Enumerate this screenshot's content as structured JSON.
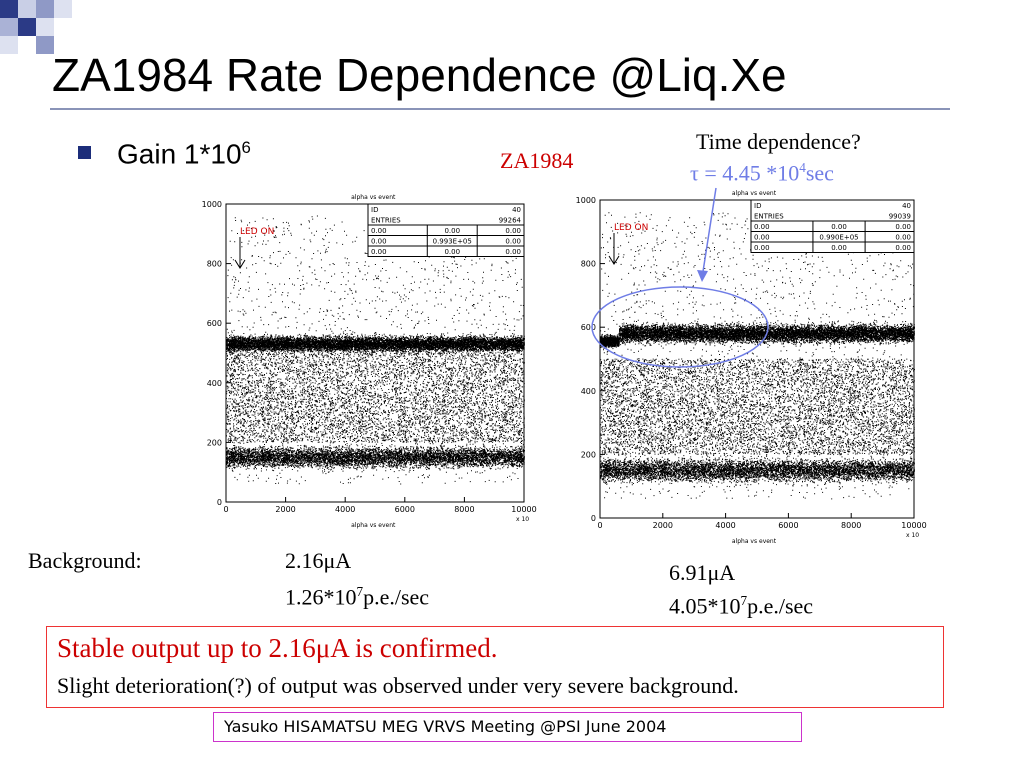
{
  "slide": {
    "title": "ZA1984 Rate Dependence @Liq.Xe",
    "bullet": {
      "text": "Gain  1*10",
      "exp": "6"
    },
    "za_label": "ZA1984",
    "time_dependence": "Time dependence?",
    "tau": {
      "sym": "τ",
      "pre": " = 4.45 *10",
      "exp": "4",
      "post": "sec"
    },
    "background_label": "Background:",
    "bg_left": {
      "current": "2.16μA",
      "rate_pre": "1.26*10",
      "rate_exp": "7",
      "rate_post": "p.e./sec"
    },
    "bg_right": {
      "current": "6.91μA",
      "rate_pre": "4.05*10",
      "rate_exp": "7",
      "rate_post": "p.e./sec"
    },
    "conclusion": {
      "line1": "Stable output up to 2.16μA is confirmed.",
      "line2": "Slight deterioration(?) of output was observed under very severe background."
    },
    "footer": "Yasuko HISAMATSU MEG VRVS Meeting @PSI  June 2004",
    "colors": {
      "accent": "#1c2d7a",
      "red": "#cc0000",
      "tau_blue": "#6f7de6",
      "footer_border": "#cc33cc"
    }
  },
  "chart_data": [
    {
      "type": "scatter",
      "title": "alpha vs event",
      "xlabel": "alpha vs event",
      "x_multiplier": "x 10",
      "xlim": [
        0,
        10000
      ],
      "ylim": [
        0,
        1000
      ],
      "x_ticks": [
        "0",
        "2000",
        "4000",
        "6000",
        "8000",
        "10000"
      ],
      "y_ticks": [
        "0",
        "200",
        "400",
        "600",
        "800",
        "1000"
      ],
      "annotation": "LED ON",
      "stats": [
        [
          "ID",
          "",
          "40"
        ],
        [
          "ENTRIES",
          "",
          "99264"
        ],
        [
          "0.00",
          "0.00",
          "0.00"
        ],
        [
          "0.00",
          "0.993E+05",
          "0.00"
        ],
        [
          "0.00",
          "0.00",
          "0.00"
        ]
      ],
      "bands": [
        {
          "y_center": 530,
          "y_halfwidth": 30,
          "x_start": 0,
          "x_end": 10000,
          "density": "high"
        },
        {
          "y_center": 150,
          "y_halfwidth": 40,
          "x_start": 0,
          "x_end": 10000,
          "density": "medium"
        }
      ]
    },
    {
      "type": "scatter",
      "title": "alpha vs event",
      "xlabel": "alpha vs event",
      "x_multiplier": "x 10",
      "xlim": [
        0,
        10000
      ],
      "ylim": [
        0,
        1000
      ],
      "x_ticks": [
        "0",
        "2000",
        "4000",
        "6000",
        "8000",
        "10000"
      ],
      "y_ticks": [
        "0",
        "200",
        "400",
        "600",
        "800",
        "1000"
      ],
      "annotation": "LED ON",
      "stats": [
        [
          "ID",
          "",
          "40"
        ],
        [
          "ENTRIES",
          "",
          "99039"
        ],
        [
          "0.00",
          "0.00",
          "0.00"
        ],
        [
          "0.00",
          "0.990E+05",
          "0.00"
        ],
        [
          "0.00",
          "0.00",
          "0.00"
        ]
      ],
      "bands": [
        {
          "y_center": 555,
          "y_halfwidth": 20,
          "x_start": 0,
          "x_end": 600,
          "density": "high"
        },
        {
          "y_center": 580,
          "y_halfwidth": 32,
          "x_start": 600,
          "x_end": 10000,
          "density": "high"
        },
        {
          "y_center": 150,
          "y_halfwidth": 40,
          "x_start": 0,
          "x_end": 10000,
          "density": "medium"
        }
      ]
    }
  ]
}
